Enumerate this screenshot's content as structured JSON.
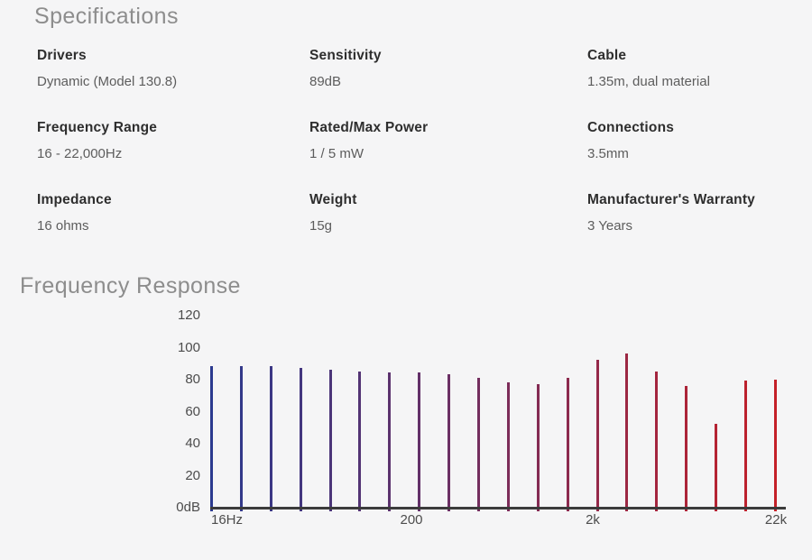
{
  "specifications": {
    "title": "Specifications",
    "items": [
      {
        "label": "Drivers",
        "value": "Dynamic (Model 130.8)"
      },
      {
        "label": "Sensitivity",
        "value": "89dB"
      },
      {
        "label": "Cable",
        "value": "1.35m, dual material"
      },
      {
        "label": "Frequency Range",
        "value": "16 - 22,000Hz"
      },
      {
        "label": "Rated/Max Power",
        "value": "1 / 5 mW"
      },
      {
        "label": "Connections",
        "value": "3.5mm"
      },
      {
        "label": "Impedance",
        "value": "16 ohms"
      },
      {
        "label": "Weight",
        "value": "15g"
      },
      {
        "label": "Manufacturer's Warranty",
        "value": "3 Years"
      }
    ]
  },
  "chart_data": {
    "type": "bar",
    "title": "Frequency Response",
    "xlabel": "",
    "ylabel": "dB",
    "ylim": [
      0,
      120
    ],
    "y_tick_labels": [
      "120",
      "100",
      "80",
      "60",
      "40",
      "20",
      "0dB"
    ],
    "x_tick_labels": [
      "16Hz",
      "200",
      "2k",
      "22k"
    ],
    "x_scale": "log",
    "x_range_hz": [
      16,
      22000
    ],
    "grid": false,
    "legend": "none",
    "values": [
      88,
      88,
      88,
      87,
      86,
      85,
      84,
      84,
      83,
      81,
      78,
      77,
      81,
      92,
      96,
      85,
      76,
      52,
      79,
      80
    ],
    "bar_color_start": "#2b3a8f",
    "bar_color_end": "#c42028",
    "axis_color": "#3b3b3b",
    "background": "#f5f5f6"
  }
}
